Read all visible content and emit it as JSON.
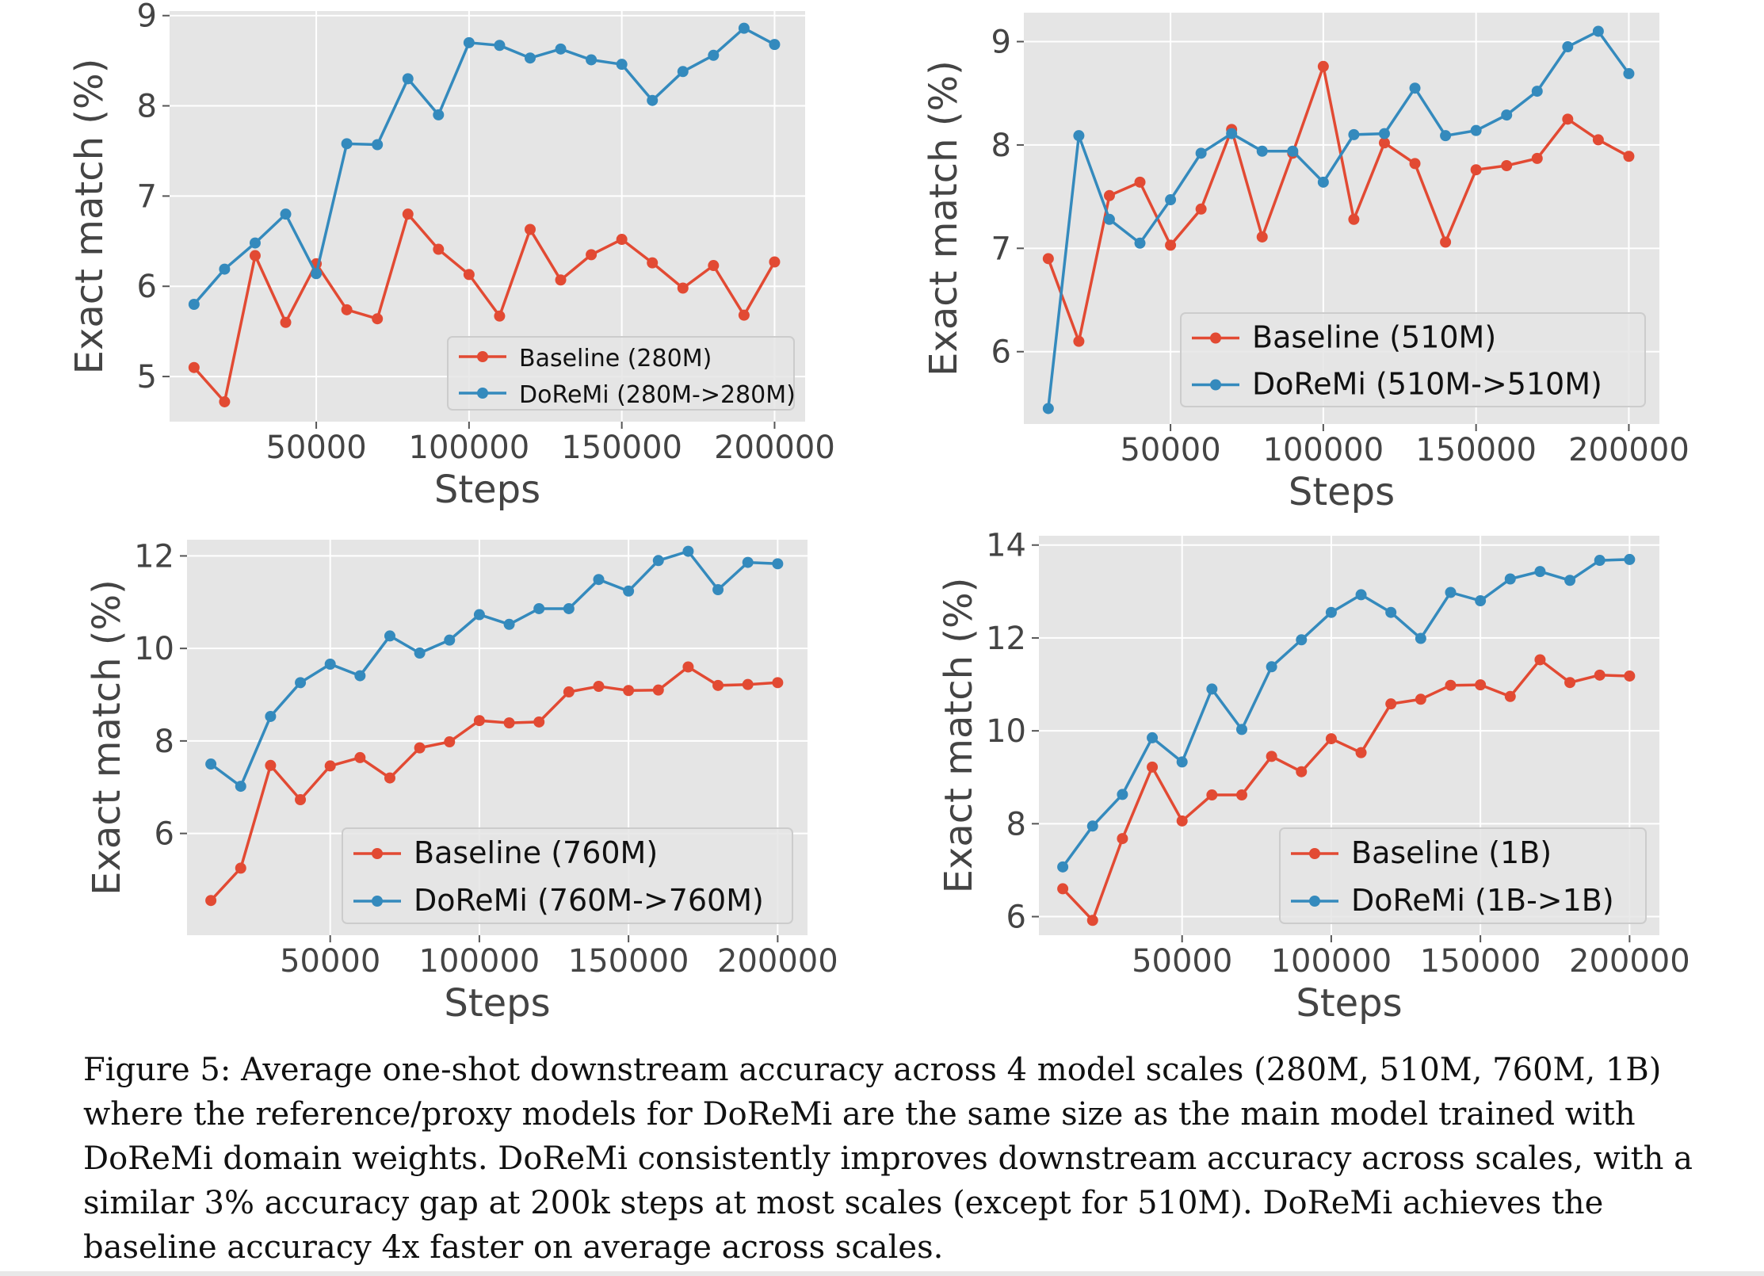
{
  "caption": "Figure 5: Average one-shot downstream accuracy across 4 model scales (280M, 510M, 760M, 1B) where the reference/proxy models for DoReMi are the same size as the main model trained with DoReMi domain weights. DoReMi consistently improves downstream accuracy across scales, with a similar 3% accuracy gap at 200k steps at most scales (except for 510M). DoReMi achieves the baseline accuracy 4x faster on average across scales.",
  "colors": {
    "baseline": "#E24A33",
    "doremi": "#348ABD",
    "plot_bg": "#E5E5E5",
    "grid": "#FFFFFF"
  },
  "chart_data": [
    {
      "type": "line",
      "title": "",
      "xlabel": "Steps",
      "ylabel": "Exact match (%)",
      "xlim": [
        2000,
        210000
      ],
      "ylim": [
        4.5,
        9.05
      ],
      "xticks": [
        50000,
        100000,
        150000,
        200000
      ],
      "yticks": [
        5,
        6,
        7,
        8,
        9
      ],
      "grid": true,
      "legend": "lower-right",
      "x": [
        10000,
        20000,
        30000,
        40000,
        50000,
        60000,
        70000,
        80000,
        90000,
        100000,
        110000,
        120000,
        130000,
        140000,
        150000,
        160000,
        170000,
        180000,
        190000,
        200000
      ],
      "series": [
        {
          "name": "Baseline (280M)",
          "values": [
            5.1,
            4.72,
            6.34,
            5.6,
            6.25,
            5.74,
            5.64,
            6.8,
            6.41,
            6.13,
            5.67,
            6.63,
            6.07,
            6.35,
            6.52,
            6.26,
            5.98,
            6.23,
            5.68,
            6.27
          ]
        },
        {
          "name": "DoReMi (280M->280M)",
          "values": [
            5.8,
            6.19,
            6.48,
            6.8,
            6.14,
            7.58,
            7.57,
            8.3,
            7.9,
            8.7,
            8.67,
            8.53,
            8.63,
            8.51,
            8.46,
            8.06,
            8.38,
            8.56,
            8.86,
            8.68
          ]
        }
      ]
    },
    {
      "type": "line",
      "title": "",
      "xlabel": "Steps",
      "ylabel": "Exact match (%)",
      "xlim": [
        2000,
        210000
      ],
      "ylim": [
        5.3,
        9.28
      ],
      "xticks": [
        50000,
        100000,
        150000,
        200000
      ],
      "yticks": [
        6,
        7,
        8,
        9
      ],
      "grid": true,
      "legend": "lower-right",
      "x": [
        10000,
        20000,
        30000,
        40000,
        50000,
        60000,
        70000,
        80000,
        90000,
        100000,
        110000,
        120000,
        130000,
        140000,
        150000,
        160000,
        170000,
        180000,
        190000,
        200000
      ],
      "series": [
        {
          "name": "Baseline (510M)",
          "values": [
            6.9,
            6.1,
            7.51,
            7.64,
            7.03,
            7.38,
            8.15,
            7.11,
            7.92,
            8.76,
            7.28,
            8.02,
            7.82,
            7.06,
            7.76,
            7.8,
            7.87,
            8.25,
            8.05,
            7.89
          ]
        },
        {
          "name": "DoReMi (510M->510M)",
          "values": [
            5.45,
            8.09,
            7.28,
            7.05,
            7.47,
            7.92,
            8.11,
            7.94,
            7.94,
            7.64,
            8.1,
            8.11,
            8.55,
            8.09,
            8.14,
            8.29,
            8.52,
            8.95,
            9.1,
            8.69
          ]
        }
      ]
    },
    {
      "type": "line",
      "title": "",
      "xlabel": "Steps",
      "ylabel": "Exact match (%)",
      "xlim": [
        2000,
        210000
      ],
      "ylim": [
        3.8,
        12.35
      ],
      "xticks": [
        50000,
        100000,
        150000,
        200000
      ],
      "yticks": [
        6,
        8,
        10,
        12
      ],
      "grid": true,
      "legend": "lower-right",
      "x": [
        10000,
        20000,
        30000,
        40000,
        50000,
        60000,
        70000,
        80000,
        90000,
        100000,
        110000,
        120000,
        130000,
        140000,
        150000,
        160000,
        170000,
        180000,
        190000,
        200000
      ],
      "series": [
        {
          "name": "Baseline (760M)",
          "values": [
            4.55,
            5.25,
            7.47,
            6.73,
            7.46,
            7.64,
            7.2,
            7.85,
            7.98,
            8.44,
            8.39,
            8.41,
            9.06,
            9.18,
            9.09,
            9.1,
            9.6,
            9.2,
            9.22,
            9.26
          ]
        },
        {
          "name": "DoReMi (760M->760M)",
          "values": [
            7.5,
            7.02,
            8.53,
            9.26,
            9.66,
            9.41,
            10.27,
            9.9,
            10.18,
            10.73,
            10.52,
            10.86,
            10.86,
            11.49,
            11.24,
            11.9,
            12.1,
            11.27,
            11.86,
            11.83
          ]
        }
      ]
    },
    {
      "type": "line",
      "title": "",
      "xlabel": "Steps",
      "ylabel": "Exact match (%)",
      "xlim": [
        2000,
        210000
      ],
      "ylim": [
        5.6,
        14.2
      ],
      "xticks": [
        50000,
        100000,
        150000,
        200000
      ],
      "yticks": [
        6,
        8,
        10,
        12,
        14
      ],
      "grid": true,
      "legend": "lower-right",
      "x": [
        10000,
        20000,
        30000,
        40000,
        50000,
        60000,
        70000,
        80000,
        90000,
        100000,
        110000,
        120000,
        130000,
        140000,
        150000,
        160000,
        170000,
        180000,
        190000,
        200000
      ],
      "series": [
        {
          "name": "Baseline (1B)",
          "values": [
            6.6,
            5.92,
            7.68,
            9.22,
            8.06,
            8.62,
            8.62,
            9.45,
            9.12,
            9.83,
            9.53,
            10.58,
            10.68,
            10.98,
            10.99,
            10.74,
            11.53,
            11.04,
            11.2,
            11.18
          ]
        },
        {
          "name": "DoReMi (1B->1B)",
          "values": [
            7.07,
            7.95,
            8.63,
            9.85,
            9.33,
            10.9,
            10.03,
            11.38,
            11.96,
            12.55,
            12.93,
            12.55,
            11.99,
            12.98,
            12.8,
            13.27,
            13.43,
            13.24,
            13.67,
            13.69
          ]
        }
      ]
    }
  ]
}
